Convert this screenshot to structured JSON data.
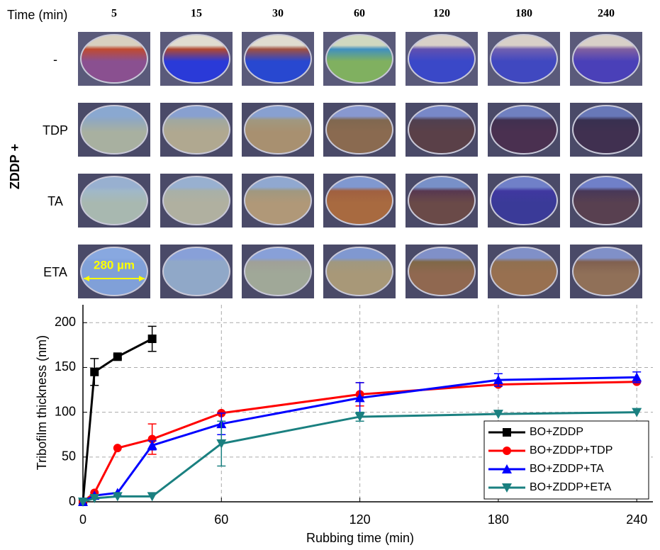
{
  "micrographs": {
    "time_label": "Time (min)",
    "columns": [
      "5",
      "15",
      "30",
      "60",
      "120",
      "180",
      "240"
    ],
    "group_label": "ZDDP +",
    "rows": [
      "-",
      "TDP",
      "TA",
      "ETA"
    ],
    "scale_label": "280 µm"
  },
  "chart_data": {
    "type": "line",
    "xlabel": "Rubbing time (min)",
    "ylabel": "Tribofilm thickness (nm)",
    "x": [
      0,
      5,
      15,
      30,
      60,
      120,
      180,
      240
    ],
    "xlim": [
      0,
      247
    ],
    "xticks": [
      0,
      60,
      120,
      180,
      240
    ],
    "ylim": [
      0,
      220
    ],
    "yticks": [
      0,
      50,
      100,
      150,
      200
    ],
    "grid": true,
    "legend": "lower right",
    "series": [
      {
        "name": "BO+ZDDP",
        "color": "#000000",
        "marker": "square",
        "values": [
          0,
          145,
          162,
          182,
          null,
          null,
          null,
          null
        ],
        "errors": [
          null,
          15,
          2,
          14,
          null,
          null,
          null,
          null
        ]
      },
      {
        "name": "BO+ZDDP+TDP",
        "color": "#ff0000",
        "marker": "circle",
        "values": [
          0,
          10,
          60,
          70,
          99,
          120,
          131,
          134
        ],
        "errors": [
          null,
          null,
          null,
          17,
          null,
          13,
          null,
          null
        ]
      },
      {
        "name": "BO+ZDDP+TA",
        "color": "#0000ff",
        "marker": "triangle-up",
        "values": [
          0,
          7,
          10,
          63,
          87,
          116,
          136,
          139
        ],
        "errors": [
          null,
          null,
          null,
          5,
          12,
          17,
          7,
          6
        ]
      },
      {
        "name": "BO+ZDDP+ETA",
        "color": "#1a8080",
        "marker": "triangle-down",
        "values": [
          0,
          4,
          6,
          6,
          65,
          95,
          98,
          100
        ],
        "errors": [
          null,
          null,
          null,
          null,
          25,
          5,
          null,
          null
        ]
      }
    ]
  }
}
